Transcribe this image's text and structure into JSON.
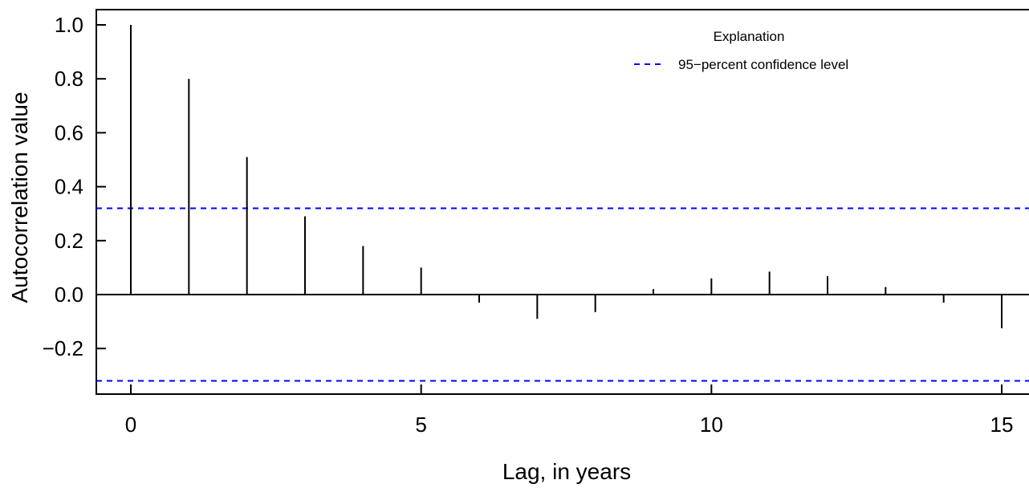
{
  "chart_data": {
    "type": "bar",
    "xlabel": "Lag, in years",
    "ylabel": "Autocorrelation value",
    "xlim": [
      -0.6,
      15.5
    ],
    "ylim": [
      -0.37,
      1.06
    ],
    "x_ticks": [
      0,
      5,
      10,
      15
    ],
    "y_ticks": [
      -0.2,
      0.0,
      0.2,
      0.4,
      0.6,
      0.8,
      1.0
    ],
    "y_tick_labels": [
      "−0.2",
      "0.0",
      "0.2",
      "0.4",
      "0.6",
      "0.8",
      "1.0"
    ],
    "series": [
      {
        "x": [
          0,
          1,
          2,
          3,
          4,
          5,
          6,
          7,
          8,
          9,
          10,
          11,
          12,
          13,
          14,
          15
        ],
        "values": [
          1.0,
          0.8,
          0.51,
          0.29,
          0.18,
          0.1,
          -0.03,
          -0.09,
          -0.065,
          0.02,
          0.06,
          0.085,
          0.068,
          0.028,
          -0.03,
          -0.125
        ]
      }
    ],
    "confidence_level": 0.32,
    "confidence_color": "#0000ff",
    "grid": false,
    "legend": {
      "title": "Explanation",
      "entries": [
        "95−percent confidence level"
      ],
      "placement": "top-right"
    }
  }
}
